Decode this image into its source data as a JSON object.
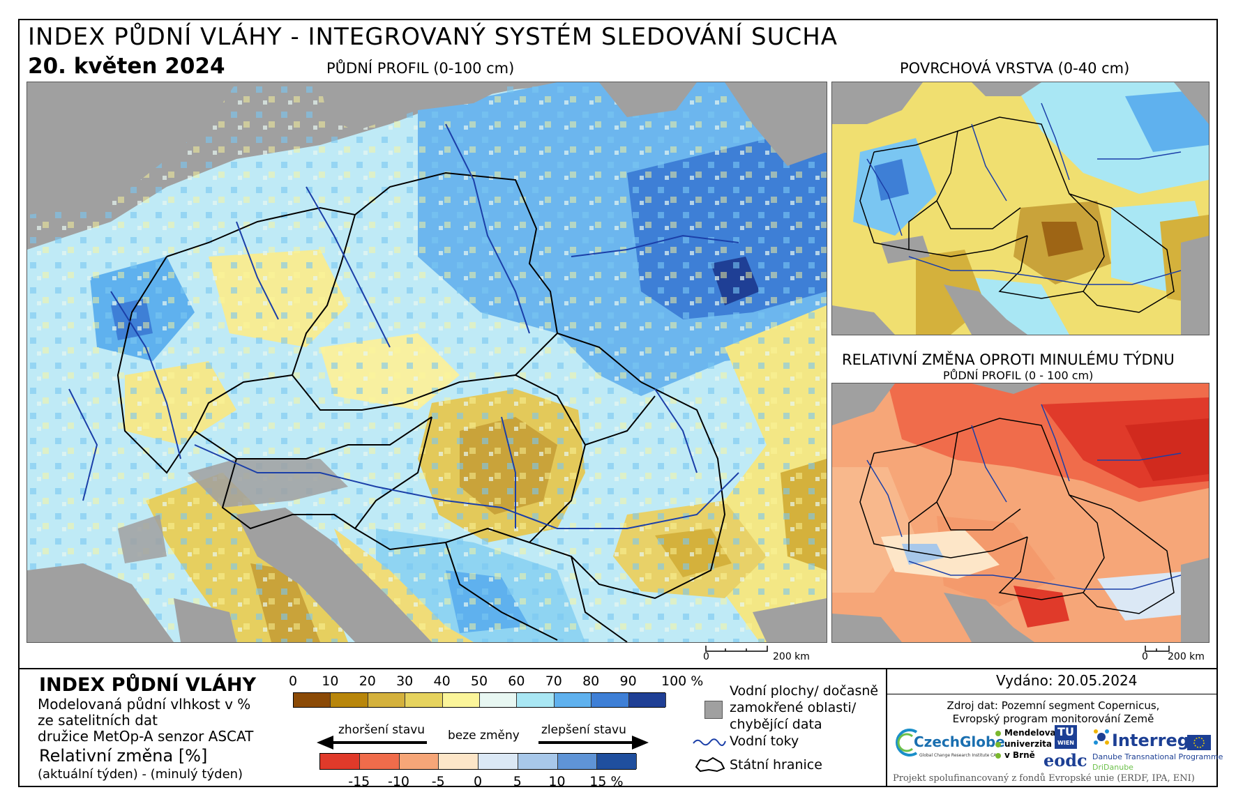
{
  "header": {
    "title": "INDEX PŮDNÍ VLÁHY - INTEGROVANÝ SYSTÉM SLEDOVÁNÍ SUCHA",
    "date": "20. květen 2024"
  },
  "maps": {
    "main_title": "PŮDNÍ PROFIL (0-100 cm)",
    "surface_title": "POVRCHOVÁ VRSTVA (0-40 cm)",
    "change_title": "RELATIVNÍ ZMĚNA OPROTI MINULÉMU TÝDNU",
    "change_subtitle": "PŮDNÍ PROFIL (0 - 100 cm)",
    "scale_main_zero": "0",
    "scale_main_label": "200 km",
    "scale_small_zero": "0",
    "scale_small_label": "200 km"
  },
  "legend": {
    "title": "INDEX PŮDNÍ VLÁHY",
    "desc_line1": "Modelovaná půdní vlhkost v %",
    "desc_line2": "ze satelitních dat",
    "desc_line3": "družice MetOp-A senzor ASCAT",
    "rel_title": "Relativní změna [%]",
    "rel_sub": "(aktuální týden) - (minulý týden)",
    "index_ticks": [
      "0",
      "10",
      "20",
      "30",
      "40",
      "50",
      "60",
      "70",
      "80",
      "90",
      "100 %"
    ],
    "index_colors": [
      "#8b4a06",
      "#b8860b",
      "#d4b13c",
      "#e6d35e",
      "#fbf59a",
      "#e8f7f2",
      "#a9e7f4",
      "#5fb1ee",
      "#3e7fd6",
      "#1f3f95"
    ],
    "arrow_left": "zhoršení stavu",
    "arrow_mid": "beze změny",
    "arrow_right": "zlepšení stavu",
    "change_ticks": [
      "-15",
      "-10",
      "-5",
      "0",
      "5",
      "10",
      "15 %"
    ],
    "change_colors": [
      "#e03a2a",
      "#f06c4b",
      "#f6a678",
      "#fde6c8",
      "#dbe8f5",
      "#a8c8ea",
      "#5f94d6",
      "#1f4f9e"
    ],
    "water_label_1": "Vodní plochy/ dočasně",
    "water_label_2": "zamokřené oblasti/",
    "water_label_3": "chybějící data",
    "rivers_label": "Vodní toky",
    "borders_label": "Státní hranice",
    "water_color": "#a0a0a0",
    "river_color": "#1b3fa8"
  },
  "info": {
    "issued": "Vydáno: 20.05.2024",
    "source_line1": "Zdroj dat: Pozemní segment Copernicus,",
    "source_line2": "Evropský program monitorování Země",
    "footer": "Projekt spolufinancovaný z fondů Evropské unie (ERDF, IPA, ENI)",
    "logos": {
      "czechglobe": "CzechGlobe",
      "czechglobe_sub": "Global Change Research Institute CAS",
      "mendel_1": "Mendelova",
      "mendel_2": "univerzita",
      "mendel_3": "v Brně",
      "tu_1": "TU",
      "tu_2": "WIEN",
      "eodc": "eodc",
      "interreg": "Interreg",
      "interreg_sub1": "Danube Transnational Programme",
      "interreg_sub2": "DriDanube"
    }
  }
}
